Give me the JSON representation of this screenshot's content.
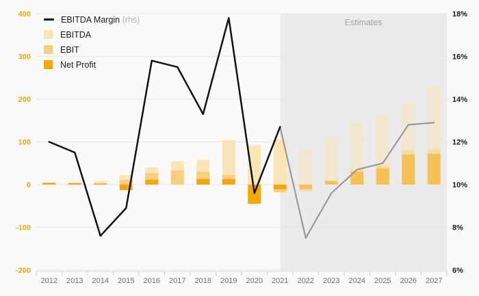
{
  "chart_data": {
    "type": "combo_bar_line",
    "title": "",
    "years": [
      "2012",
      "2013",
      "2014",
      "2015",
      "2016",
      "2017",
      "2018",
      "2019",
      "2020",
      "2021",
      "2022",
      "2023",
      "2024",
      "2025",
      "2026",
      "2027"
    ],
    "series": [
      {
        "name": "EBITDA",
        "color": "#FAE5B4",
        "values": [
          5,
          5,
          8,
          22,
          40,
          54,
          58,
          104,
          92,
          105,
          83,
          110,
          145,
          163,
          193,
          230
        ]
      },
      {
        "name": "EBIT",
        "color": "#F9CF7D",
        "values": [
          4,
          4,
          3,
          11,
          27,
          33,
          30,
          22,
          0,
          -18,
          -16,
          11,
          36,
          45,
          81,
          83
        ]
      },
      {
        "name": "Net Profit",
        "color": "#F7A800",
        "values": [
          4,
          3,
          2,
          -13,
          11,
          0,
          13,
          13,
          -45,
          -11,
          -11,
          8,
          30,
          38,
          70,
          72
        ]
      }
    ],
    "line": {
      "name": "EBITDA Margin",
      "axis": "rhs",
      "color_actual": "#111111",
      "color_estimates": "#999999",
      "values_pct": [
        12.0,
        11.5,
        7.6,
        8.9,
        15.8,
        15.5,
        13.3,
        17.8,
        9.6,
        12.7,
        7.5,
        9.6,
        10.7,
        11.0,
        12.8,
        12.9
      ]
    },
    "left_axis": {
      "ticks": [
        400,
        300,
        200,
        100,
        0,
        -100,
        -200
      ],
      "range": [
        -200,
        400
      ],
      "label_color": "#F2A900"
    },
    "right_axis": {
      "ticks": [
        "18%",
        "16%",
        "14%",
        "12%",
        "10%",
        "8%",
        "6%"
      ],
      "tick_values_pct": [
        18,
        16,
        14,
        12,
        10,
        8,
        6
      ],
      "range_pct": [
        6,
        18
      ],
      "label_color": "#1a1a1a"
    },
    "x_axis": {
      "label_color": "#6e6e6e",
      "tick_color": "#c9cfdb"
    },
    "grid": {
      "on": true,
      "color": "#e7e7e7"
    },
    "estimates": {
      "label": "Estimates",
      "start_year": "2021",
      "background": "#ebebeb",
      "text_color": "#a3a3a3",
      "bar_opacity": 0.5
    },
    "legend": [
      {
        "label": "EBITDA Margin",
        "suffix": " (rhs)",
        "type": "line",
        "color": "#111111"
      },
      {
        "label": "EBITDA",
        "suffix": "",
        "type": "box",
        "color": "#FAE5B4"
      },
      {
        "label": "EBIT",
        "suffix": "",
        "type": "box",
        "color": "#F9CF7D"
      },
      {
        "label": "Net Profit",
        "suffix": "",
        "type": "box",
        "color": "#F7A800"
      }
    ]
  }
}
